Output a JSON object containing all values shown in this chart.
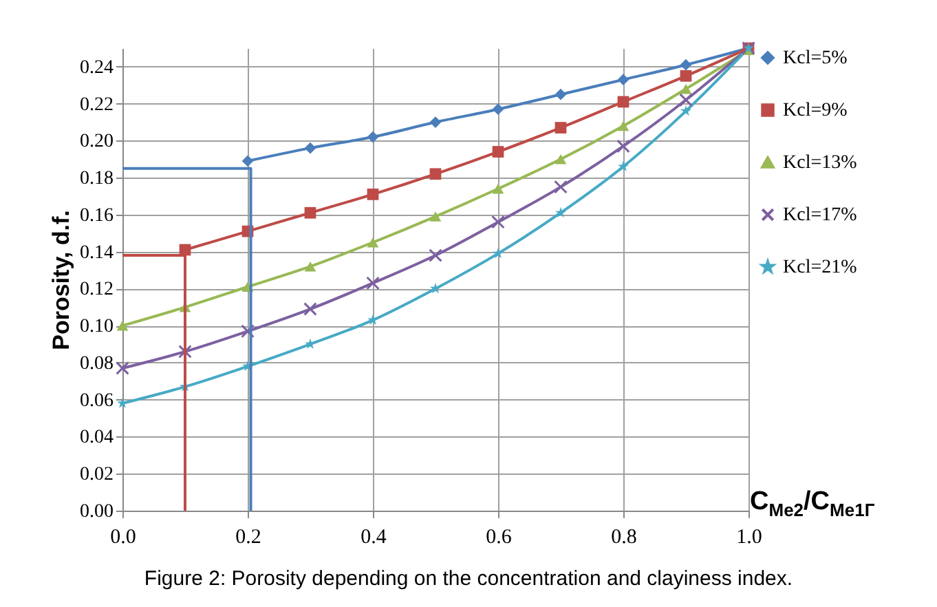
{
  "chart_data": {
    "type": "line",
    "title": "Figure 2: Porosity depending on the concentration and clayiness index.",
    "xlabel": "C$_{Me2}$/C$_{Me1Г}$",
    "ylabel": "Porosity, d.f.",
    "x": [
      0,
      0.1,
      0.2,
      0.3,
      0.4,
      0.5,
      0.6,
      0.7,
      0.8,
      0.9,
      1.0
    ],
    "series": [
      {
        "name": "Kcl=5%",
        "color": "#4a7ebb",
        "marker": "diamond",
        "x": [
          0.2,
          0.3,
          0.4,
          0.5,
          0.6,
          0.7,
          0.8,
          0.9,
          1.0
        ],
        "values": [
          0.189,
          0.196,
          0.202,
          0.21,
          0.217,
          0.225,
          0.233,
          0.241,
          0.25
        ]
      },
      {
        "name": "Kcl=9%",
        "color": "#be4b48",
        "marker": "square",
        "x": [
          0.1,
          0.2,
          0.3,
          0.4,
          0.5,
          0.6,
          0.7,
          0.8,
          0.9,
          1.0
        ],
        "values": [
          0.141,
          0.151,
          0.161,
          0.171,
          0.182,
          0.194,
          0.207,
          0.221,
          0.235,
          0.25
        ]
      },
      {
        "name": "Kcl=13%",
        "color": "#98b954",
        "marker": "triangle",
        "values": [
          0.1,
          0.11,
          0.121,
          0.132,
          0.145,
          0.159,
          0.174,
          0.19,
          0.208,
          0.228,
          0.249
        ]
      },
      {
        "name": "Kcl=17%",
        "color": "#7d60a0",
        "marker": "cross",
        "values": [
          0.077,
          0.086,
          0.097,
          0.109,
          0.123,
          0.138,
          0.156,
          0.175,
          0.197,
          0.222,
          0.25
        ]
      },
      {
        "name": "Kcl=21%",
        "color": "#46aac5",
        "marker": "star",
        "values": [
          0.058,
          0.067,
          0.078,
          0.09,
          0.103,
          0.12,
          0.139,
          0.161,
          0.186,
          0.216,
          0.25
        ]
      },
      {
        "color": "#4a7ebb",
        "marker": "none",
        "x": [
          0,
          0.2,
          0.205,
          0.205
        ],
        "values": [
          0.185,
          0.185,
          0.185,
          0
        ]
      },
      {
        "color": "#be4b48",
        "marker": "none",
        "x": [
          0,
          0.1,
          0.1
        ],
        "values": [
          0.138,
          0.138,
          0
        ]
      }
    ],
    "xlim": [
      0,
      1.0
    ],
    "ylim": [
      0,
      0.25
    ],
    "xticks": [
      {
        "value": 0,
        "label": "0.0"
      },
      0.2,
      0.4,
      0.6,
      0.8,
      {
        "value": 1,
        "label": "1.0"
      }
    ],
    "yticks": [
      {
        "value": 0,
        "label": "0.00"
      },
      0.02,
      0.04,
      0.06,
      0.08,
      {
        "value": 0.1,
        "label": "0.10"
      },
      0.12,
      0.14,
      0.16,
      0.18,
      {
        "value": 0.2,
        "label": "0.20"
      },
      0.22,
      0.24
    ],
    "grid": true,
    "legend": "right"
  }
}
